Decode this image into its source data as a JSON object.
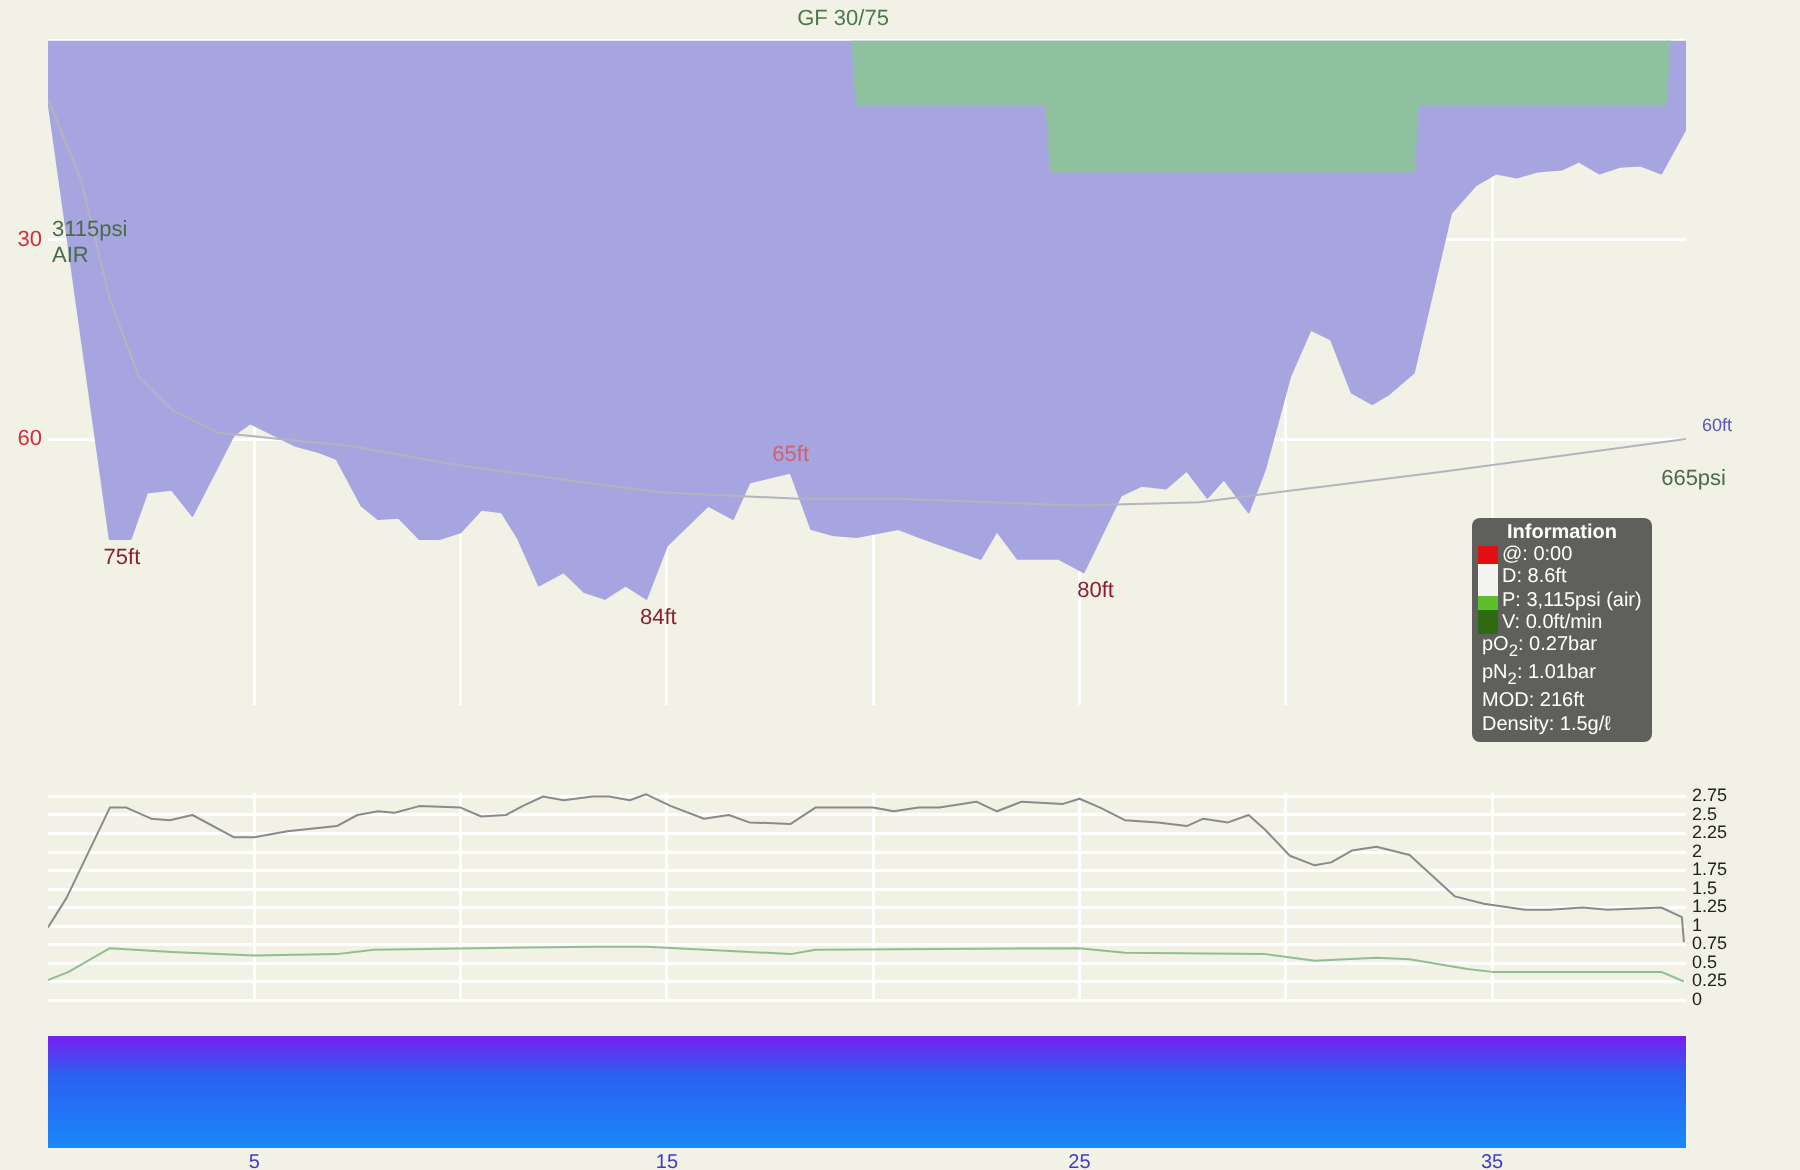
{
  "chart_data": [
    {
      "type": "area",
      "title": "GF 30/75",
      "xlim": [
        0,
        39.7
      ],
      "xticks": [
        5,
        {
          "value": 10,
          "label": null
        },
        15,
        {
          "value": 20,
          "label": null
        },
        25,
        {
          "value": 30,
          "label": null
        },
        35
      ],
      "ylim": [
        100,
        0
      ],
      "yticks": [
        {
          "value": 0,
          "label": null
        },
        30,
        60
      ],
      "grid": true,
      "tick_labels": "y",
      "series": [
        {
          "type": "area",
          "color": "#a7a5e0",
          "x": [
            0,
            1.5,
            2.0,
            2.4,
            3.0,
            3.5,
            4.5,
            4.9,
            6.0,
            6.6,
            7.0,
            7.6,
            8.0,
            8.5,
            9.0,
            9.5,
            10.0,
            10.5,
            11.0,
            11.4,
            11.9,
            12.5,
            13.0,
            13.5,
            14.0,
            14.5,
            15.0,
            16.0,
            16.6,
            17.0,
            18.0,
            18.5,
            19.0,
            19.6,
            20.6,
            21.1,
            21.5,
            22.6,
            23.0,
            23.5,
            24.5,
            25.1,
            26.0,
            26.5,
            27.1,
            27.6,
            28.1,
            28.5,
            29.1,
            29.5,
            30.1,
            30.6,
            31.1,
            31.6,
            32.1,
            32.5,
            33.1,
            34.0,
            34.6,
            35.1,
            35.6,
            36.1,
            36.7,
            37.1,
            37.6,
            38.1,
            38.6,
            39.1,
            39.7
          ],
          "values": [
            8.6,
            75,
            75,
            68,
            67.6,
            71.5,
            59.4,
            57.6,
            61,
            62,
            63,
            70,
            72,
            71.8,
            75,
            75,
            74,
            70.6,
            71,
            75,
            82,
            80,
            83,
            84,
            82,
            84,
            76,
            70,
            72,
            66.5,
            65,
            73.5,
            74.4,
            74.7,
            73.5,
            74.7,
            75.6,
            78,
            73.8,
            78,
            78,
            80,
            68.5,
            67,
            67.4,
            64.7,
            68.8,
            66,
            71,
            64.4,
            50.6,
            43.5,
            45,
            53,
            54.7,
            53.2,
            50,
            26,
            21.8,
            20,
            20.6,
            19.7,
            19.4,
            18.2,
            20,
            19,
            18.8,
            20,
            13.2
          ],
          "value_labels": [
            null,
            "75ft",
            null,
            null,
            null,
            null,
            null,
            null,
            null,
            null,
            null,
            null,
            null,
            null,
            null,
            null,
            null,
            null,
            null,
            null,
            null,
            null,
            null,
            null,
            null,
            "84ft",
            null,
            null,
            null,
            null,
            "65ft",
            null,
            null,
            null,
            null,
            null,
            null,
            null,
            null,
            null,
            null,
            "80ft",
            null,
            null,
            null,
            null,
            null,
            null,
            null,
            null,
            null,
            null,
            null,
            null,
            null,
            null,
            null,
            null,
            null,
            null,
            null,
            null,
            null,
            null,
            null,
            null,
            null,
            null,
            null
          ]
        },
        {
          "type": "area",
          "color": "#8fc0a0",
          "x": [
            19.5,
            19.6,
            24.2,
            24.3,
            33.1,
            33.2,
            39.2,
            39.3
          ],
          "values": [
            0,
            9.7,
            9.7,
            19.7,
            19.7,
            9.7,
            9.7,
            0
          ]
        },
        {
          "type": "line",
          "color": "#b4b4bc",
          "x": [
            0,
            0.8,
            1.5,
            2.2,
            3.0,
            4.1,
            5.6,
            7.3,
            10,
            12.4,
            14.8,
            18.2,
            20.6,
            25,
            27.9,
            29.8,
            33.7,
            36.1,
            39.7
          ],
          "values": [
            8.8,
            21,
            39,
            50.6,
            55.6,
            59,
            60,
            61,
            64,
            66,
            68,
            69,
            69,
            70,
            69.5,
            68,
            65,
            63,
            60
          ],
          "value_labels": [
            null,
            null,
            null,
            null,
            null,
            null,
            null,
            null,
            null,
            null,
            null,
            null,
            null,
            null,
            null,
            null,
            null,
            null,
            "60ft"
          ]
        }
      ],
      "annotations": [
        "3115psi",
        "AIR",
        "665psi"
      ]
    },
    {
      "type": "line",
      "xlim": [
        0,
        39.7
      ],
      "xticks": [
        5,
        {
          "value": 10,
          "label": null
        },
        15,
        {
          "value": 20,
          "label": null
        },
        25,
        {
          "value": 30,
          "label": null
        },
        35
      ],
      "y2lim": [
        0,
        2.8
      ],
      "y2ticks": [
        0,
        0.25,
        0.5,
        0.75,
        1,
        1.25,
        1.5,
        1.75,
        2,
        2.25,
        2.5,
        2.75
      ],
      "grid": true,
      "series": [
        {
          "type": "line",
          "color": "#8a8a8a",
          "axis": "y2",
          "x": [
            0,
            0.45,
            1.5,
            1.9,
            2.5,
            2.95,
            3.5,
            4.5,
            5,
            5.8,
            7,
            7.5,
            8,
            8.4,
            9,
            10,
            10.5,
            11.1,
            11.5,
            12,
            12.5,
            13.2,
            13.6,
            14.1,
            14.5,
            15.1,
            15.9,
            16.5,
            17,
            18,
            18.6,
            20,
            20.5,
            21.1,
            21.6,
            22.5,
            23,
            23.6,
            24.6,
            25,
            25.5,
            26.1,
            26.9,
            27.6,
            28,
            28.6,
            29.1,
            29.5,
            30.1,
            30.7,
            31.1,
            31.6,
            32.2,
            33,
            34.1,
            34.8,
            35.8,
            36.4,
            37.2,
            37.8,
            39.1,
            39.6,
            39.65
          ],
          "values": [
            0.98,
            1.38,
            2.6,
            2.6,
            2.45,
            2.43,
            2.5,
            2.2,
            2.2,
            2.28,
            2.35,
            2.5,
            2.55,
            2.53,
            2.62,
            2.6,
            2.48,
            2.5,
            2.62,
            2.75,
            2.7,
            2.75,
            2.75,
            2.7,
            2.78,
            2.62,
            2.45,
            2.5,
            2.4,
            2.38,
            2.6,
            2.6,
            2.55,
            2.6,
            2.6,
            2.68,
            2.55,
            2.68,
            2.65,
            2.72,
            2.6,
            2.43,
            2.4,
            2.35,
            2.45,
            2.4,
            2.5,
            2.3,
            1.95,
            1.82,
            1.86,
            2.02,
            2.07,
            1.96,
            1.4,
            1.3,
            1.22,
            1.22,
            1.25,
            1.22,
            1.25,
            1.12,
            0.78
          ]
        },
        {
          "type": "line",
          "color": "#8fbf8f",
          "axis": "y2",
          "x": [
            0,
            0.5,
            1.5,
            3,
            5,
            7,
            7.9,
            13.2,
            14.5,
            16.3,
            18,
            18.6,
            25,
            26.1,
            29.5,
            30.7,
            32.2,
            33,
            34.4,
            35,
            39.1,
            39.65
          ],
          "values": [
            0.27,
            0.38,
            0.7,
            0.65,
            0.6,
            0.62,
            0.68,
            0.72,
            0.72,
            0.67,
            0.62,
            0.68,
            0.7,
            0.64,
            0.62,
            0.53,
            0.57,
            0.55,
            0.42,
            0.38,
            0.38,
            0.25
          ]
        }
      ]
    },
    {
      "type": "other",
      "title": "Information",
      "annotations": [
        "@: 0:00",
        "D: 8.6ft",
        "P: 3,115psi (air)",
        "V: 0.0ft/min",
        "pO$_{2}$: 0.27bar",
        "pN$_{2}$: 1.01bar",
        "MOD: 216ft",
        "Density: 1.5g/ℓ"
      ]
    }
  ]
}
